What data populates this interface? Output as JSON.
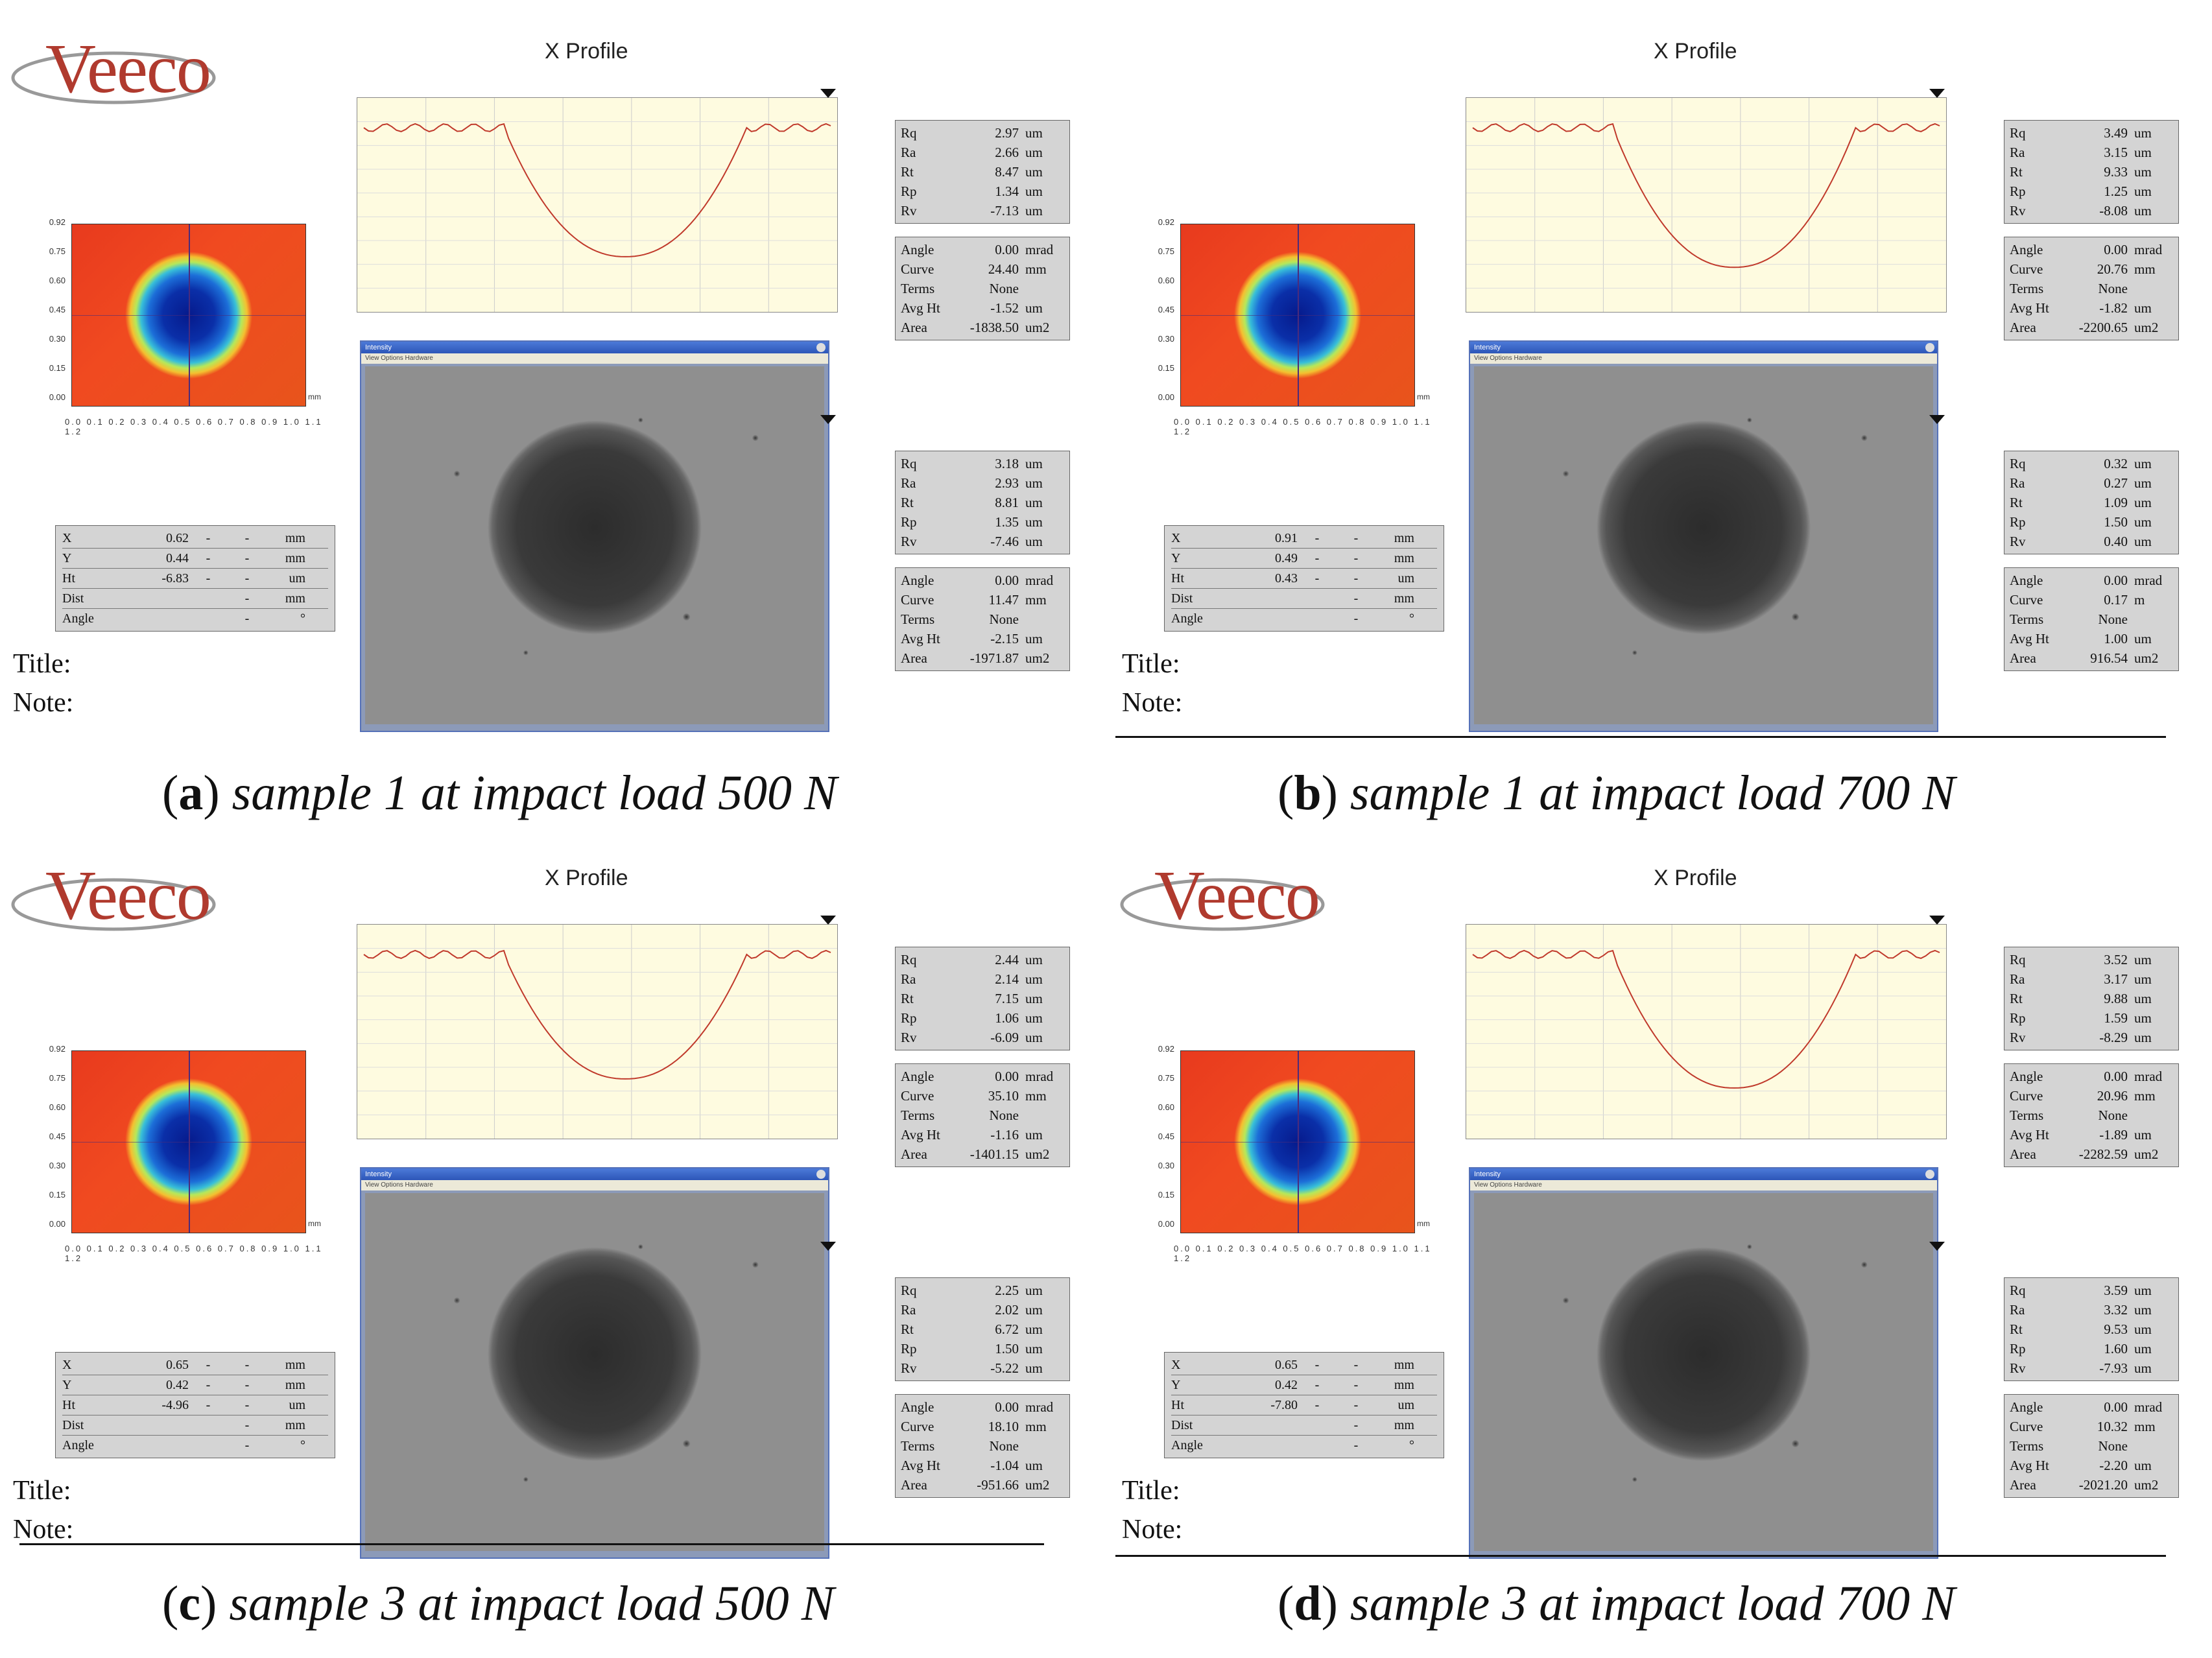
{
  "figure": {
    "panels": [
      {
        "id": "a",
        "logo": "Veeco",
        "profile_title": "X Profile",
        "heatmap_ylabels": [
          "0.92",
          "0.75",
          "0.60",
          "0.45",
          "0.30",
          "0.15",
          "0.00"
        ],
        "heatmap_xlabels": "0.0 0.1 0.2 0.3 0.4 0.5 0.6 0.7 0.8 0.9 1.0 1.1 1.2",
        "heatmap_unit": "mm",
        "stats1": [
          [
            "Rq",
            "2.97",
            "um"
          ],
          [
            "Ra",
            "2.66",
            "um"
          ],
          [
            "Rt",
            "8.47",
            "um"
          ],
          [
            "Rp",
            "1.34",
            "um"
          ],
          [
            "Rv",
            "-7.13",
            "um"
          ]
        ],
        "stats2": [
          [
            "Angle",
            "0.00",
            "mrad"
          ],
          [
            "Curve",
            "24.40",
            "mm"
          ],
          [
            "Terms",
            "None",
            ""
          ],
          [
            "Avg Ht",
            "-1.52",
            "um"
          ],
          [
            "Area",
            "-1838.50",
            "um2"
          ]
        ],
        "stats3": [
          [
            "Rq",
            "3.18",
            "um"
          ],
          [
            "Ra",
            "2.93",
            "um"
          ],
          [
            "Rt",
            "8.81",
            "um"
          ],
          [
            "Rp",
            "1.35",
            "um"
          ],
          [
            "Rv",
            "-7.46",
            "um"
          ]
        ],
        "stats4": [
          [
            "Angle",
            "0.00",
            "mrad"
          ],
          [
            "Curve",
            "11.47",
            "mm"
          ],
          [
            "Terms",
            "None",
            ""
          ],
          [
            "Avg Ht",
            "-2.15",
            "um"
          ],
          [
            "Area",
            "-1971.87",
            "um2"
          ]
        ],
        "cursor": [
          [
            "X",
            "0.62",
            "-",
            "-",
            "mm"
          ],
          [
            "Y",
            "0.44",
            "-",
            "-",
            "mm"
          ],
          [
            "Ht",
            "-6.83",
            "-",
            "-",
            "um"
          ],
          [
            "Dist",
            "",
            "",
            "-",
            "mm"
          ],
          [
            "Angle",
            "",
            "",
            "-",
            "°"
          ]
        ],
        "title_label": "Title:",
        "note_label": "Note:",
        "caption_letter": "a",
        "caption_text": " sample 1 at impact load 500 N"
      },
      {
        "id": "b",
        "logo": "",
        "profile_title": "X Profile",
        "heatmap_ylabels": [
          "0.92",
          "0.75",
          "0.60",
          "0.45",
          "0.30",
          "0.15",
          "0.00"
        ],
        "heatmap_xlabels": "0.0 0.1 0.2 0.3 0.4 0.5 0.6 0.7 0.8 0.9 1.0 1.1 1.2",
        "heatmap_unit": "mm",
        "stats1": [
          [
            "Rq",
            "3.49",
            "um"
          ],
          [
            "Ra",
            "3.15",
            "um"
          ],
          [
            "Rt",
            "9.33",
            "um"
          ],
          [
            "Rp",
            "1.25",
            "um"
          ],
          [
            "Rv",
            "-8.08",
            "um"
          ]
        ],
        "stats2": [
          [
            "Angle",
            "0.00",
            "mrad"
          ],
          [
            "Curve",
            "20.76",
            "mm"
          ],
          [
            "Terms",
            "None",
            ""
          ],
          [
            "Avg Ht",
            "-1.82",
            "um"
          ],
          [
            "Area",
            "-2200.65",
            "um2"
          ]
        ],
        "stats3": [
          [
            "Rq",
            "0.32",
            "um"
          ],
          [
            "Ra",
            "0.27",
            "um"
          ],
          [
            "Rt",
            "1.09",
            "um"
          ],
          [
            "Rp",
            "1.50",
            "um"
          ],
          [
            "Rv",
            "0.40",
            "um"
          ]
        ],
        "stats4": [
          [
            "Angle",
            "0.00",
            "mrad"
          ],
          [
            "Curve",
            "0.17",
            "m"
          ],
          [
            "Terms",
            "None",
            ""
          ],
          [
            "Avg Ht",
            "1.00",
            "um"
          ],
          [
            "Area",
            "916.54",
            "um2"
          ]
        ],
        "cursor": [
          [
            "X",
            "0.91",
            "-",
            "-",
            "mm"
          ],
          [
            "Y",
            "0.49",
            "-",
            "-",
            "mm"
          ],
          [
            "Ht",
            "0.43",
            "-",
            "-",
            "um"
          ],
          [
            "Dist",
            "",
            "",
            "-",
            "mm"
          ],
          [
            "Angle",
            "",
            "",
            "-",
            "°"
          ]
        ],
        "title_label": "Title:",
        "note_label": "Note:",
        "caption_letter": "b",
        "caption_text": " sample 1 at impact load 700 N"
      },
      {
        "id": "c",
        "logo": "Veeco",
        "profile_title": "X Profile",
        "heatmap_ylabels": [
          "0.92",
          "0.75",
          "0.60",
          "0.45",
          "0.30",
          "0.15",
          "0.00"
        ],
        "heatmap_xlabels": "0.0 0.1 0.2 0.3 0.4 0.5 0.6 0.7 0.8 0.9 1.0 1.1 1.2",
        "heatmap_unit": "mm",
        "stats1": [
          [
            "Rq",
            "2.44",
            "um"
          ],
          [
            "Ra",
            "2.14",
            "um"
          ],
          [
            "Rt",
            "7.15",
            "um"
          ],
          [
            "Rp",
            "1.06",
            "um"
          ],
          [
            "Rv",
            "-6.09",
            "um"
          ]
        ],
        "stats2": [
          [
            "Angle",
            "0.00",
            "mrad"
          ],
          [
            "Curve",
            "35.10",
            "mm"
          ],
          [
            "Terms",
            "None",
            ""
          ],
          [
            "Avg Ht",
            "-1.16",
            "um"
          ],
          [
            "Area",
            "-1401.15",
            "um2"
          ]
        ],
        "stats3": [
          [
            "Rq",
            "2.25",
            "um"
          ],
          [
            "Ra",
            "2.02",
            "um"
          ],
          [
            "Rt",
            "6.72",
            "um"
          ],
          [
            "Rp",
            "1.50",
            "um"
          ],
          [
            "Rv",
            "-5.22",
            "um"
          ]
        ],
        "stats4": [
          [
            "Angle",
            "0.00",
            "mrad"
          ],
          [
            "Curve",
            "18.10",
            "mm"
          ],
          [
            "Terms",
            "None",
            ""
          ],
          [
            "Avg Ht",
            "-1.04",
            "um"
          ],
          [
            "Area",
            "-951.66",
            "um2"
          ]
        ],
        "cursor": [
          [
            "X",
            "0.65",
            "-",
            "-",
            "mm"
          ],
          [
            "Y",
            "0.42",
            "-",
            "-",
            "mm"
          ],
          [
            "Ht",
            "-4.96",
            "-",
            "-",
            "um"
          ],
          [
            "Dist",
            "",
            "",
            "-",
            "mm"
          ],
          [
            "Angle",
            "",
            "",
            "-",
            "°"
          ]
        ],
        "title_label": "Title:",
        "note_label": "Note:",
        "caption_letter": "c",
        "caption_text": " sample 3 at impact load 500 N"
      },
      {
        "id": "d",
        "logo": "Veeco",
        "profile_title": "X Profile",
        "heatmap_ylabels": [
          "0.92",
          "0.75",
          "0.60",
          "0.45",
          "0.30",
          "0.15",
          "0.00"
        ],
        "heatmap_xlabels": "0.0 0.1 0.2 0.3 0.4 0.5 0.6 0.7 0.8 0.9 1.0 1.1 1.2",
        "heatmap_unit": "mm",
        "stats1": [
          [
            "Rq",
            "3.52",
            "um"
          ],
          [
            "Ra",
            "3.17",
            "um"
          ],
          [
            "Rt",
            "9.88",
            "um"
          ],
          [
            "Rp",
            "1.59",
            "um"
          ],
          [
            "Rv",
            "-8.29",
            "um"
          ]
        ],
        "stats2": [
          [
            "Angle",
            "0.00",
            "mrad"
          ],
          [
            "Curve",
            "20.96",
            "mm"
          ],
          [
            "Terms",
            "None",
            ""
          ],
          [
            "Avg Ht",
            "-1.89",
            "um"
          ],
          [
            "Area",
            "-2282.59",
            "um2"
          ]
        ],
        "stats3": [
          [
            "Rq",
            "3.59",
            "um"
          ],
          [
            "Ra",
            "3.32",
            "um"
          ],
          [
            "Rt",
            "9.53",
            "um"
          ],
          [
            "Rp",
            "1.60",
            "um"
          ],
          [
            "Rv",
            "-7.93",
            "um"
          ]
        ],
        "stats4": [
          [
            "Angle",
            "0.00",
            "mrad"
          ],
          [
            "Curve",
            "10.32",
            "mm"
          ],
          [
            "Terms",
            "None",
            ""
          ],
          [
            "Avg Ht",
            "-2.20",
            "um"
          ],
          [
            "Area",
            "-2021.20",
            "um2"
          ]
        ],
        "cursor": [
          [
            "X",
            "0.65",
            "-",
            "-",
            "mm"
          ],
          [
            "Y",
            "0.42",
            "-",
            "-",
            "mm"
          ],
          [
            "Ht",
            "-7.80",
            "-",
            "-",
            "um"
          ],
          [
            "Dist",
            "",
            "",
            "-",
            "mm"
          ],
          [
            "Angle",
            "",
            "",
            "-",
            "°"
          ]
        ],
        "title_label": "Title:",
        "note_label": "Note:",
        "caption_letter": "d",
        "caption_text": " sample 3 at impact load 700 N"
      }
    ]
  },
  "colors": {
    "logo_red": "#b03a2e",
    "profile_bg": "#fefbe0",
    "profile_line": "#c0392b",
    "stats_bg": "#d4d4d4"
  }
}
